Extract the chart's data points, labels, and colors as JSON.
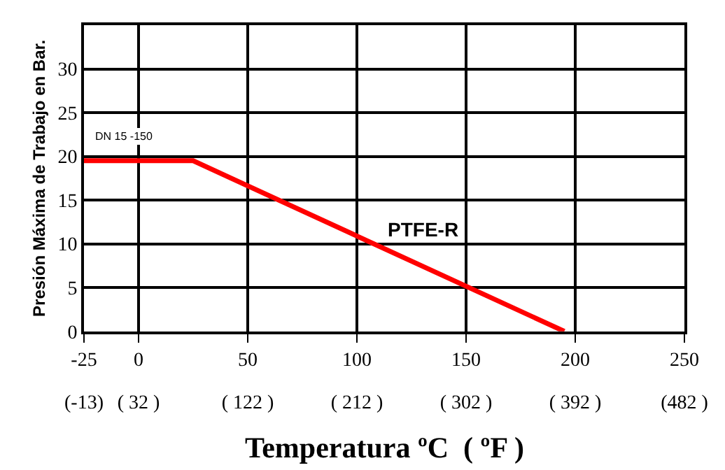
{
  "chart_data": {
    "type": "line",
    "xlabel": "Temperatura ºC  ( ºF )",
    "ylabel": "Presión Máxima de Trabajo en Bar.",
    "x": [
      -25,
      25,
      195
    ],
    "series": [
      {
        "name": "PTFE-R",
        "color": "#ff0000",
        "values": [
          19.5,
          19.5,
          0
        ]
      }
    ],
    "annotations": [
      "DN 15 -150"
    ],
    "xlim": [
      -25,
      250
    ],
    "xticks": [
      -25,
      0,
      50,
      100,
      150,
      200,
      250
    ],
    "x2lim": [
      -13,
      482
    ],
    "x2ticks": [
      {
        "value": -13,
        "label": "(-13)"
      },
      {
        "value": 32,
        "label": "( 32 )"
      },
      {
        "value": 122,
        "label": "( 122 )"
      },
      {
        "value": 212,
        "label": "( 212 )"
      },
      {
        "value": 302,
        "label": "( 302 )"
      },
      {
        "value": 392,
        "label": "( 392 )"
      },
      {
        "value": 482,
        "label": "(482 )"
      }
    ],
    "ylim": [
      0,
      35
    ],
    "yticks": [
      0,
      5,
      10,
      15,
      20,
      25,
      30
    ],
    "grid": true,
    "legend": false,
    "marker": "none",
    "line_style": "solid"
  }
}
